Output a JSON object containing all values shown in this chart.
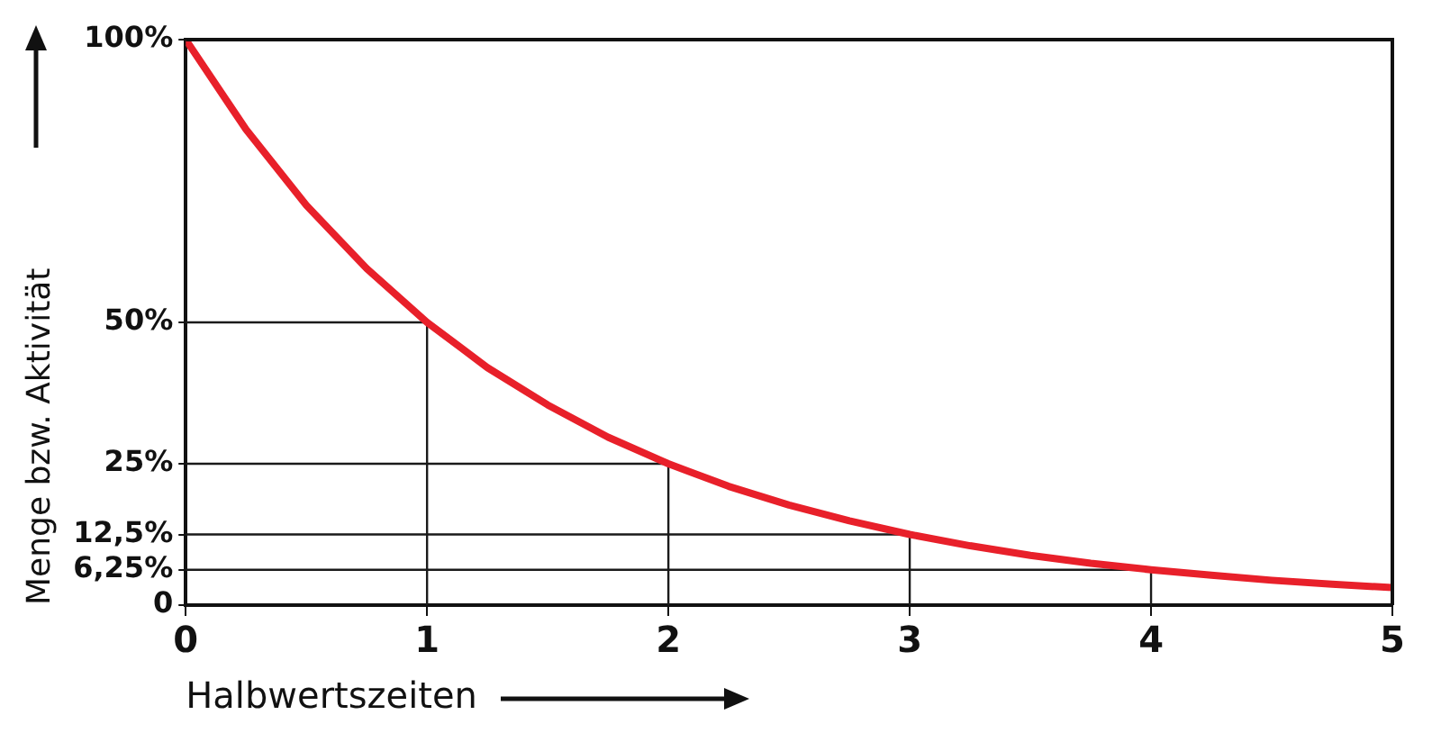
{
  "chart_data": {
    "type": "line",
    "xlabel": "Halbwertszeiten",
    "ylabel": "Menge bzw. Aktivität",
    "xlim": [
      0,
      5
    ],
    "xticks": [
      0,
      1,
      2,
      3,
      4,
      5
    ],
    "ylim": [
      0,
      100
    ],
    "yticks": [
      {
        "value": 0,
        "label": "0"
      },
      {
        "value": 6.25,
        "label": "6,25%"
      },
      {
        "value": 12.5,
        "label": "12,5%"
      },
      {
        "value": 25,
        "label": "25%"
      },
      {
        "value": 50,
        "label": "50%"
      },
      {
        "value": 100,
        "label": "100%"
      }
    ],
    "grid": false,
    "legend": false,
    "marker": "none",
    "series": [
      {
        "color": "#e8202a",
        "x": [
          0,
          0.25,
          0.5,
          0.75,
          1,
          1.25,
          1.5,
          1.75,
          2,
          2.25,
          2.5,
          2.75,
          3,
          3.25,
          3.5,
          3.75,
          4,
          4.25,
          4.5,
          4.75,
          5
        ],
        "values": [
          100,
          84.1,
          70.7,
          59.5,
          50,
          42,
          35.4,
          29.7,
          25,
          21,
          17.7,
          14.9,
          12.5,
          10.5,
          8.8,
          7.4,
          6.25,
          5.3,
          4.4,
          3.7,
          3.1
        ]
      },
      {
        "color": "#1a1a1a",
        "x": [
          0,
          1,
          1
        ],
        "values": [
          50,
          50,
          0
        ]
      },
      {
        "color": "#1a1a1a",
        "x": [
          0,
          2,
          2
        ],
        "values": [
          25,
          25,
          0
        ]
      },
      {
        "color": "#1a1a1a",
        "x": [
          0,
          3,
          3
        ],
        "values": [
          12.5,
          12.5,
          0
        ]
      },
      {
        "color": "#1a1a1a",
        "x": [
          0,
          4,
          4
        ],
        "values": [
          6.25,
          6.25,
          0
        ]
      }
    ]
  }
}
